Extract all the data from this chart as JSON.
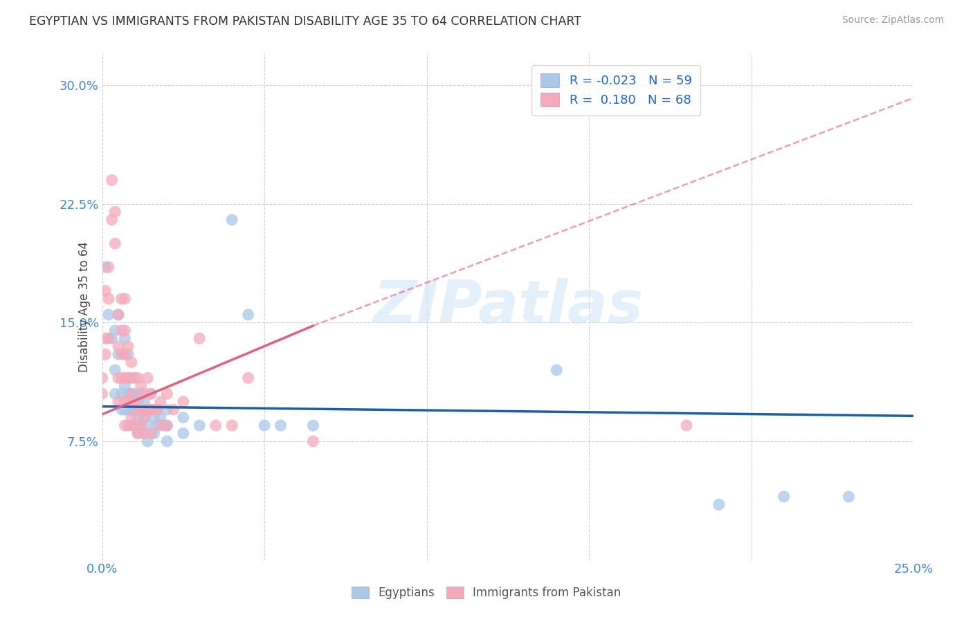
{
  "title": "EGYPTIAN VS IMMIGRANTS FROM PAKISTAN DISABILITY AGE 35 TO 64 CORRELATION CHART",
  "source": "Source: ZipAtlas.com",
  "ylabel": "Disability Age 35 to 64",
  "xlim": [
    0.0,
    0.25
  ],
  "ylim": [
    0.0,
    0.32
  ],
  "xticks": [
    0.0,
    0.05,
    0.1,
    0.15,
    0.2,
    0.25
  ],
  "xticklabels": [
    "0.0%",
    "",
    "",
    "",
    "",
    "25.0%"
  ],
  "yticks": [
    0.075,
    0.15,
    0.225,
    0.3
  ],
  "yticklabels": [
    "7.5%",
    "15.0%",
    "22.5%",
    "30.0%"
  ],
  "legend_r_blue": "-0.023",
  "legend_n_blue": "59",
  "legend_r_pink": "0.180",
  "legend_n_pink": "68",
  "blue_color": "#aac8e8",
  "pink_color": "#f4aabb",
  "blue_line_color": "#1a5fa8",
  "pink_line_color": "#e06080",
  "blue_line_solid": [
    [
      0.0,
      0.097
    ],
    [
      0.25,
      0.091
    ]
  ],
  "pink_line_solid": [
    [
      0.0,
      0.092
    ],
    [
      0.065,
      0.148
    ]
  ],
  "pink_line_dashed": [
    [
      0.065,
      0.148
    ],
    [
      0.25,
      0.292
    ]
  ],
  "blue_scatter": [
    [
      0.001,
      0.185
    ],
    [
      0.002,
      0.155
    ],
    [
      0.003,
      0.14
    ],
    [
      0.004,
      0.145
    ],
    [
      0.004,
      0.12
    ],
    [
      0.004,
      0.105
    ],
    [
      0.005,
      0.155
    ],
    [
      0.005,
      0.13
    ],
    [
      0.006,
      0.105
    ],
    [
      0.006,
      0.095
    ],
    [
      0.007,
      0.14
    ],
    [
      0.007,
      0.11
    ],
    [
      0.007,
      0.095
    ],
    [
      0.008,
      0.13
    ],
    [
      0.008,
      0.105
    ],
    [
      0.008,
      0.095
    ],
    [
      0.009,
      0.115
    ],
    [
      0.009,
      0.105
    ],
    [
      0.009,
      0.095
    ],
    [
      0.009,
      0.085
    ],
    [
      0.01,
      0.105
    ],
    [
      0.01,
      0.095
    ],
    [
      0.01,
      0.085
    ],
    [
      0.011,
      0.1
    ],
    [
      0.011,
      0.09
    ],
    [
      0.011,
      0.08
    ],
    [
      0.012,
      0.105
    ],
    [
      0.012,
      0.095
    ],
    [
      0.012,
      0.085
    ],
    [
      0.013,
      0.1
    ],
    [
      0.013,
      0.09
    ],
    [
      0.013,
      0.08
    ],
    [
      0.014,
      0.095
    ],
    [
      0.014,
      0.085
    ],
    [
      0.014,
      0.075
    ],
    [
      0.015,
      0.105
    ],
    [
      0.015,
      0.095
    ],
    [
      0.016,
      0.09
    ],
    [
      0.016,
      0.08
    ],
    [
      0.017,
      0.095
    ],
    [
      0.017,
      0.085
    ],
    [
      0.018,
      0.09
    ],
    [
      0.019,
      0.085
    ],
    [
      0.02,
      0.095
    ],
    [
      0.02,
      0.085
    ],
    [
      0.02,
      0.075
    ],
    [
      0.025,
      0.09
    ],
    [
      0.025,
      0.08
    ],
    [
      0.03,
      0.085
    ],
    [
      0.04,
      0.215
    ],
    [
      0.045,
      0.155
    ],
    [
      0.05,
      0.085
    ],
    [
      0.055,
      0.085
    ],
    [
      0.065,
      0.085
    ],
    [
      0.14,
      0.12
    ],
    [
      0.19,
      0.035
    ],
    [
      0.21,
      0.04
    ],
    [
      0.23,
      0.04
    ]
  ],
  "pink_scatter": [
    [
      0.0,
      0.115
    ],
    [
      0.0,
      0.105
    ],
    [
      0.001,
      0.17
    ],
    [
      0.001,
      0.14
    ],
    [
      0.001,
      0.13
    ],
    [
      0.002,
      0.185
    ],
    [
      0.002,
      0.165
    ],
    [
      0.002,
      0.14
    ],
    [
      0.003,
      0.24
    ],
    [
      0.003,
      0.215
    ],
    [
      0.004,
      0.22
    ],
    [
      0.004,
      0.2
    ],
    [
      0.005,
      0.155
    ],
    [
      0.005,
      0.135
    ],
    [
      0.005,
      0.115
    ],
    [
      0.005,
      0.1
    ],
    [
      0.006,
      0.165
    ],
    [
      0.006,
      0.145
    ],
    [
      0.006,
      0.13
    ],
    [
      0.006,
      0.115
    ],
    [
      0.007,
      0.165
    ],
    [
      0.007,
      0.145
    ],
    [
      0.007,
      0.13
    ],
    [
      0.007,
      0.115
    ],
    [
      0.007,
      0.1
    ],
    [
      0.007,
      0.085
    ],
    [
      0.008,
      0.135
    ],
    [
      0.008,
      0.115
    ],
    [
      0.008,
      0.1
    ],
    [
      0.008,
      0.085
    ],
    [
      0.009,
      0.125
    ],
    [
      0.009,
      0.105
    ],
    [
      0.009,
      0.09
    ],
    [
      0.01,
      0.115
    ],
    [
      0.01,
      0.1
    ],
    [
      0.01,
      0.085
    ],
    [
      0.011,
      0.115
    ],
    [
      0.011,
      0.095
    ],
    [
      0.011,
      0.08
    ],
    [
      0.012,
      0.11
    ],
    [
      0.012,
      0.095
    ],
    [
      0.012,
      0.085
    ],
    [
      0.013,
      0.105
    ],
    [
      0.013,
      0.09
    ],
    [
      0.013,
      0.08
    ],
    [
      0.014,
      0.115
    ],
    [
      0.014,
      0.095
    ],
    [
      0.015,
      0.105
    ],
    [
      0.015,
      0.095
    ],
    [
      0.015,
      0.08
    ],
    [
      0.016,
      0.095
    ],
    [
      0.017,
      0.095
    ],
    [
      0.018,
      0.1
    ],
    [
      0.018,
      0.085
    ],
    [
      0.02,
      0.105
    ],
    [
      0.02,
      0.085
    ],
    [
      0.022,
      0.095
    ],
    [
      0.025,
      0.1
    ],
    [
      0.03,
      0.14
    ],
    [
      0.035,
      0.085
    ],
    [
      0.04,
      0.085
    ],
    [
      0.045,
      0.115
    ],
    [
      0.065,
      0.075
    ],
    [
      0.18,
      0.085
    ]
  ],
  "watermark_text": "ZIPatlas",
  "background_color": "#ffffff",
  "grid_color": "#cccccc"
}
